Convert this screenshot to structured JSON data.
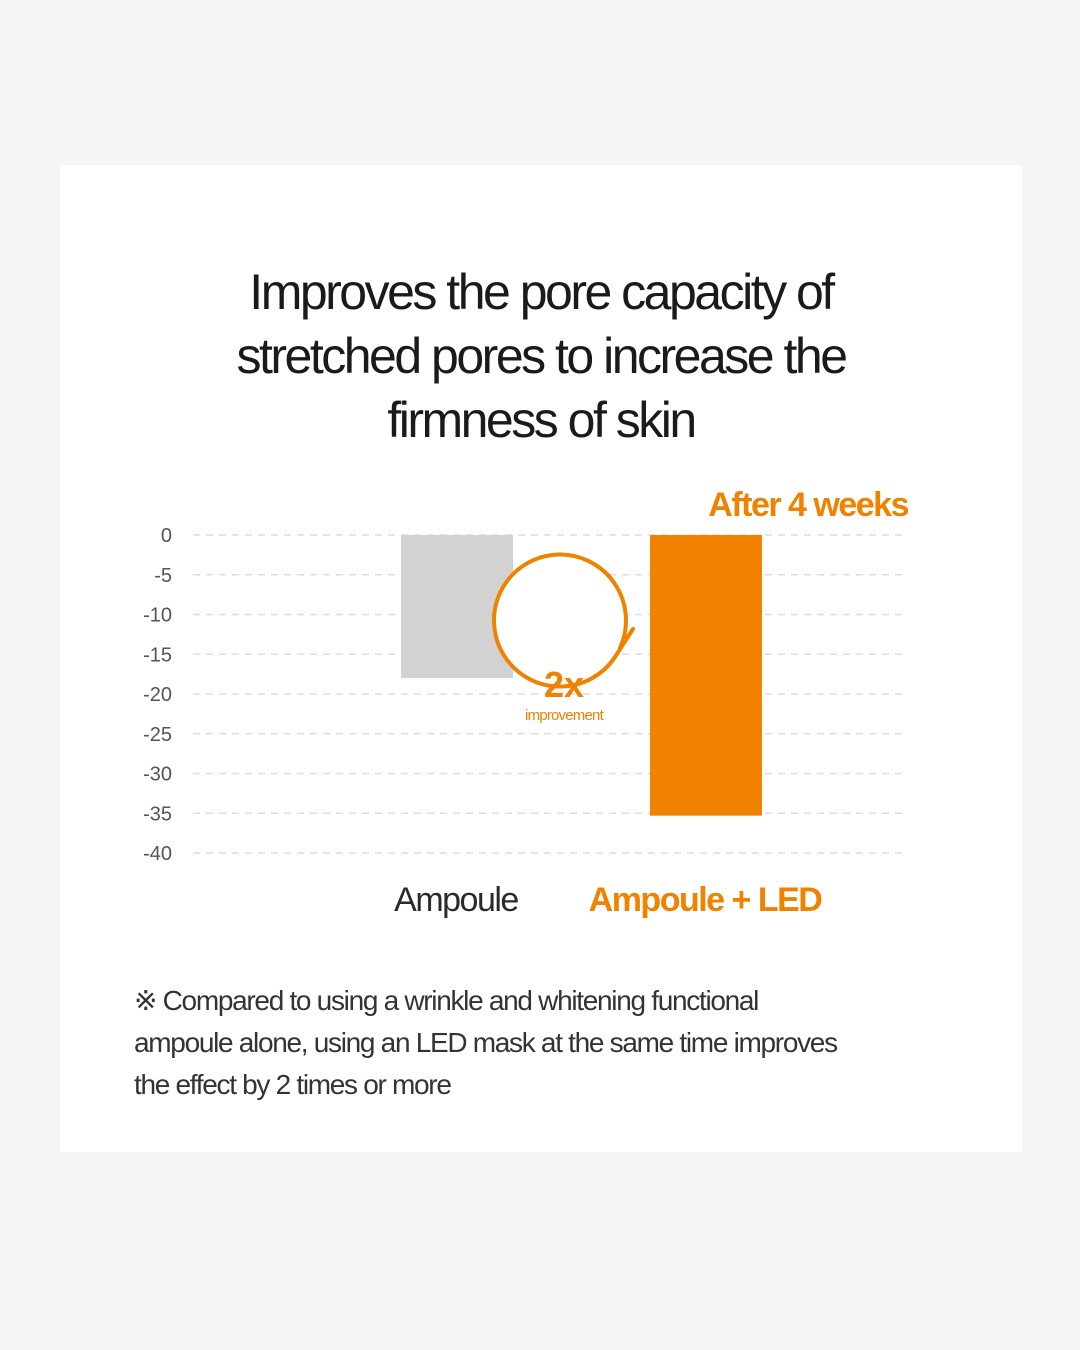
{
  "title_lines": [
    "Improves the pore capacity of",
    "stretched pores to increase the",
    "firmness of skin"
  ],
  "chart_data": {
    "type": "bar",
    "categories": [
      "Ampoule",
      "Ampoule + LED"
    ],
    "values": [
      -18,
      -35.3
    ],
    "ylim": [
      -40,
      0
    ],
    "yticks": [
      "0",
      "-5",
      "-10",
      "-15",
      "-20",
      "-25",
      "-30",
      "-35",
      "-40"
    ],
    "grid": true,
    "annotation_top": "After 4 weeks",
    "callout": {
      "big": "2x",
      "small": "improvement"
    },
    "colors": {
      "ampoule_bar": "#d2d2d2",
      "led_bar": "#f08200",
      "accent": "#f08200",
      "grid": "#dddddd",
      "tick_text": "#555555",
      "category_text": "#2a2a2a"
    }
  },
  "footnote_lines": [
    "※ Compared to using a wrinkle and whitening functional",
    "ampoule alone, using an LED mask at the same time improves",
    "the effect by 2 times or more"
  ]
}
